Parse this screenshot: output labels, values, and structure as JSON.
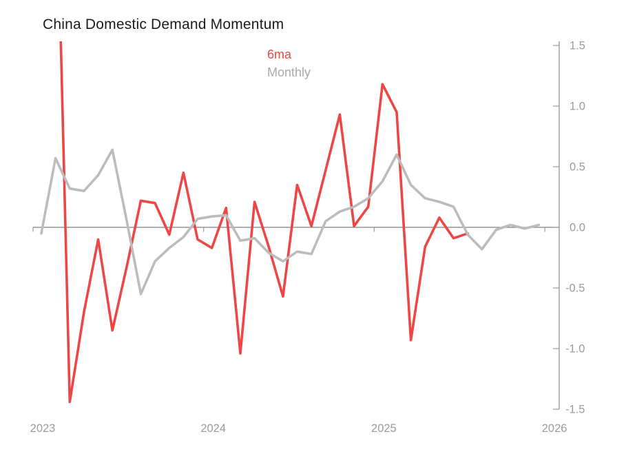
{
  "title": "China Domestic Demand Momentum",
  "legend": {
    "series1_label": "6ma",
    "series2_label": "Monthly"
  },
  "colors": {
    "series1": "#ee4545",
    "series2": "#bcbcbc",
    "axis": "#9b9b9b",
    "zero_line": "#7d7d7d",
    "tick_label": "#9b9b9b",
    "title_text": "#1b1b1b",
    "background": "#ffffff"
  },
  "chart_data": {
    "type": "line",
    "title": "China Domestic Demand Momentum",
    "grid": false,
    "legend_position": "top-center",
    "x_axis": {
      "tick_labels": [
        "2023",
        "2024",
        "2025",
        "2026"
      ],
      "ticks_at_year_starts": true,
      "monthly_points": true
    },
    "y_axis": {
      "side": "right",
      "ticks": [
        "1.5",
        "1.0",
        "0.5",
        "0.0",
        "-0.5",
        "-1.0",
        "-1.5"
      ],
      "ylim": [
        -1.5,
        1.5
      ]
    },
    "series": [
      {
        "name": "6ma",
        "color": "#ee4545",
        "start_month": "2023-02",
        "end_month": "2025-07",
        "note": "First point lies above the y-axis range, so the line enters clipped from the top edge.",
        "values": [
          3.3,
          -1.44,
          -0.7,
          -0.1,
          -0.85,
          -0.33,
          0.22,
          0.2,
          -0.06,
          0.45,
          -0.1,
          -0.17,
          0.16,
          -1.04,
          0.21,
          -0.16,
          -0.57,
          0.35,
          0.01,
          0.47,
          0.93,
          0.01,
          0.17,
          1.18,
          0.95,
          -0.93,
          -0.16,
          0.08,
          -0.09,
          -0.05
        ]
      },
      {
        "name": "Monthly",
        "color": "#bcbcbc",
        "start_month": "2023-01",
        "end_month": "2025-12",
        "values": [
          -0.05,
          0.57,
          0.32,
          0.3,
          0.43,
          0.64,
          0.06,
          -0.55,
          -0.28,
          -0.17,
          -0.08,
          0.07,
          0.09,
          0.1,
          -0.11,
          -0.09,
          -0.21,
          -0.28,
          -0.2,
          -0.22,
          0.05,
          0.13,
          0.17,
          0.24,
          0.38,
          0.6,
          0.35,
          0.24,
          0.21,
          0.17,
          -0.06,
          -0.18,
          -0.02,
          0.02,
          -0.01,
          0.02
        ]
      }
    ]
  }
}
